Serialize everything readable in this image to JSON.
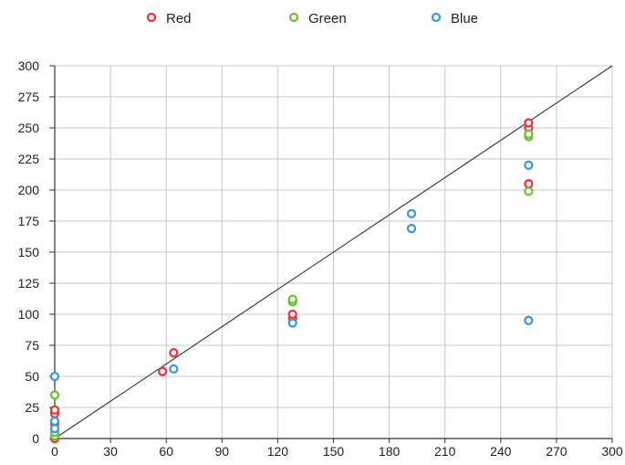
{
  "chart_data": {
    "type": "scatter",
    "title": "",
    "xlabel": "",
    "ylabel": "",
    "xlim": [
      0,
      300
    ],
    "ylim": [
      0,
      300
    ],
    "grid": true,
    "legend_position": "top",
    "x_ticks": [
      "0",
      "30",
      "60",
      "90",
      "120",
      "150",
      "180",
      "210",
      "240",
      "270",
      "300"
    ],
    "y_ticks": [
      "0",
      "25",
      "50",
      "75",
      "100",
      "125",
      "150",
      "175",
      "200",
      "225",
      "250",
      "275",
      "300"
    ],
    "reference_line": {
      "x": [
        0,
        300
      ],
      "y": [
        0,
        300
      ],
      "color": "#333333"
    },
    "series": [
      {
        "name": "Red",
        "color": "#e8373c",
        "points": [
          {
            "x": 0,
            "y": 0
          },
          {
            "x": 0,
            "y": 12
          },
          {
            "x": 0,
            "y": 20
          },
          {
            "x": 0,
            "y": 23
          },
          {
            "x": 58,
            "y": 54
          },
          {
            "x": 64,
            "y": 69
          },
          {
            "x": 128,
            "y": 97
          },
          {
            "x": 128,
            "y": 100
          },
          {
            "x": 255,
            "y": 205
          },
          {
            "x": 255,
            "y": 250
          },
          {
            "x": 255,
            "y": 254
          }
        ]
      },
      {
        "name": "Green",
        "color": "#6fbf3a",
        "points": [
          {
            "x": 0,
            "y": 2
          },
          {
            "x": 0,
            "y": 5
          },
          {
            "x": 0,
            "y": 35
          },
          {
            "x": 128,
            "y": 110
          },
          {
            "x": 128,
            "y": 112
          },
          {
            "x": 255,
            "y": 199
          },
          {
            "x": 255,
            "y": 243
          },
          {
            "x": 255,
            "y": 245
          }
        ]
      },
      {
        "name": "Blue",
        "color": "#3f9ad1",
        "points": [
          {
            "x": 0,
            "y": 8
          },
          {
            "x": 0,
            "y": 14
          },
          {
            "x": 0,
            "y": 50
          },
          {
            "x": 64,
            "y": 56
          },
          {
            "x": 128,
            "y": 93
          },
          {
            "x": 192,
            "y": 169
          },
          {
            "x": 192,
            "y": 181
          },
          {
            "x": 255,
            "y": 95
          },
          {
            "x": 255,
            "y": 220
          }
        ]
      }
    ]
  }
}
